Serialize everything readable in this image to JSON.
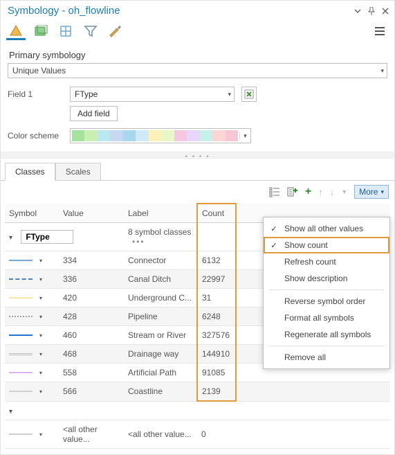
{
  "title": "Symbology - oh_flowline",
  "primary_label": "Primary symbology",
  "primary_value": "Unique Values",
  "field1_label": "Field 1",
  "field1_value": "FType",
  "add_field_label": "Add field",
  "color_scheme_label": "Color scheme",
  "ramp_colors": [
    "#a6e3a1",
    "#c9f0b2",
    "#b9e8f0",
    "#c7d8f0",
    "#a7d8f0",
    "#cfe9f6",
    "#fff1b8",
    "#e9f7c7",
    "#f6c7e2",
    "#ead6fa",
    "#c7f0ea",
    "#fcd5d5",
    "#f7c7d8"
  ],
  "tabs": {
    "classes": "Classes",
    "scales": "Scales"
  },
  "more_label": "More",
  "columns": {
    "symbol": "Symbol",
    "value": "Value",
    "label": "Label",
    "count": "Count"
  },
  "group_field": "FType",
  "group_summary": "8 symbol classes",
  "rows": [
    {
      "swatch_color": "#7aa6d6",
      "style": "solid",
      "value": "334",
      "label": "Connector",
      "count": "6132"
    },
    {
      "swatch_color": "#4f7fc4",
      "style": "dashed",
      "value": "336",
      "label": "Canal Ditch",
      "count": "22997"
    },
    {
      "swatch_color": "#f7e7a1",
      "style": "solid",
      "value": "420",
      "label": "Underground C...",
      "count": "31"
    },
    {
      "swatch_color": "#9e9e9e",
      "style": "dotted",
      "value": "428",
      "label": "Pipeline",
      "count": "6248"
    },
    {
      "swatch_color": "#1f78d1",
      "style": "solid",
      "value": "460",
      "label": "Stream or River",
      "count": "327576"
    },
    {
      "swatch_color": "#bdbdbd",
      "style": "double",
      "value": "468",
      "label": "Drainage way",
      "count": "144910"
    },
    {
      "swatch_color": "#d7b6f0",
      "style": "solid",
      "value": "558",
      "label": "Artificial Path",
      "count": "91085"
    },
    {
      "swatch_color": "#d0d0d0",
      "style": "solid",
      "value": "566",
      "label": "Coastline",
      "count": "2139"
    }
  ],
  "all_other_group": "<all other values>",
  "all_other_value": "<all other value...",
  "all_other_label": "<all other value...",
  "all_other_count": "0",
  "menu": {
    "show_all_other": "Show all other values",
    "show_count": "Show count",
    "refresh_count": "Refresh count",
    "show_description": "Show description",
    "reverse_order": "Reverse symbol order",
    "format_all": "Format all symbols",
    "regenerate": "Regenerate all symbols",
    "remove_all": "Remove all"
  }
}
